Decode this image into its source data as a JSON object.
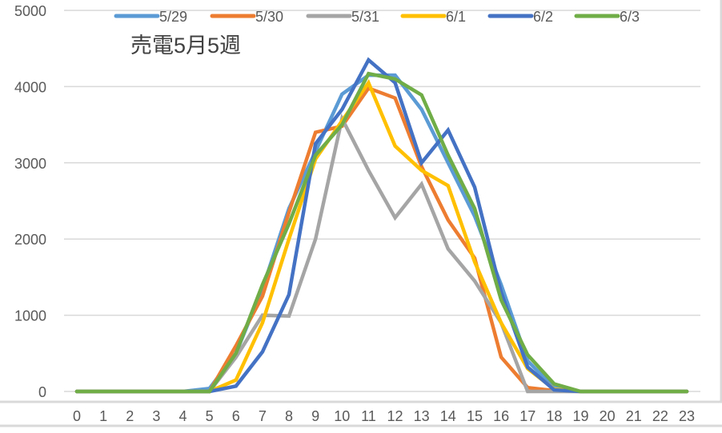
{
  "chart_data": {
    "type": "line",
    "title": "売電5月5週",
    "xlabel": "",
    "ylabel": "",
    "ylim": [
      0,
      5000
    ],
    "yticks": [
      0,
      1000,
      2000,
      3000,
      4000,
      5000
    ],
    "grid": true,
    "legend_position": "top",
    "x": [
      0,
      1,
      2,
      3,
      4,
      5,
      6,
      7,
      8,
      9,
      10,
      11,
      12,
      13,
      14,
      15,
      16,
      17,
      18,
      19,
      20,
      21,
      22,
      23
    ],
    "series": [
      {
        "name": "5/29",
        "color": "#5B9BD5",
        "values": [
          0,
          0,
          0,
          0,
          0,
          40,
          500,
          1350,
          2400,
          3150,
          3900,
          4150,
          4150,
          3700,
          3000,
          2300,
          1400,
          400,
          50,
          0,
          0,
          0,
          0,
          0
        ]
      },
      {
        "name": "5/30",
        "color": "#ED7D31",
        "values": [
          0,
          0,
          0,
          0,
          0,
          0,
          600,
          1250,
          2350,
          3400,
          3480,
          3980,
          3850,
          2950,
          2250,
          1750,
          450,
          50,
          10,
          0,
          0,
          0,
          0,
          0
        ]
      },
      {
        "name": "5/31",
        "color": "#A5A5A5",
        "values": [
          0,
          0,
          0,
          0,
          0,
          0,
          450,
          1000,
          990,
          2000,
          3580,
          2900,
          2280,
          2720,
          1870,
          1450,
          900,
          0,
          0,
          0,
          0,
          0,
          0,
          0
        ]
      },
      {
        "name": "6/1",
        "color": "#FFC000",
        "values": [
          0,
          0,
          0,
          0,
          0,
          0,
          150,
          900,
          2000,
          3050,
          3550,
          4050,
          3220,
          2900,
          2700,
          1700,
          900,
          300,
          30,
          0,
          0,
          0,
          0,
          0
        ]
      },
      {
        "name": "6/2",
        "color": "#4472C4",
        "values": [
          0,
          0,
          0,
          0,
          0,
          0,
          70,
          520,
          1270,
          3250,
          3700,
          4350,
          4050,
          3000,
          3430,
          2680,
          1300,
          320,
          20,
          0,
          0,
          0,
          0,
          0
        ]
      },
      {
        "name": "6/3",
        "color": "#70AD47",
        "values": [
          0,
          0,
          0,
          0,
          0,
          0,
          500,
          1400,
          2200,
          3100,
          3500,
          4170,
          4100,
          3890,
          3100,
          2400,
          1200,
          480,
          100,
          0,
          0,
          0,
          0,
          0
        ]
      }
    ]
  }
}
